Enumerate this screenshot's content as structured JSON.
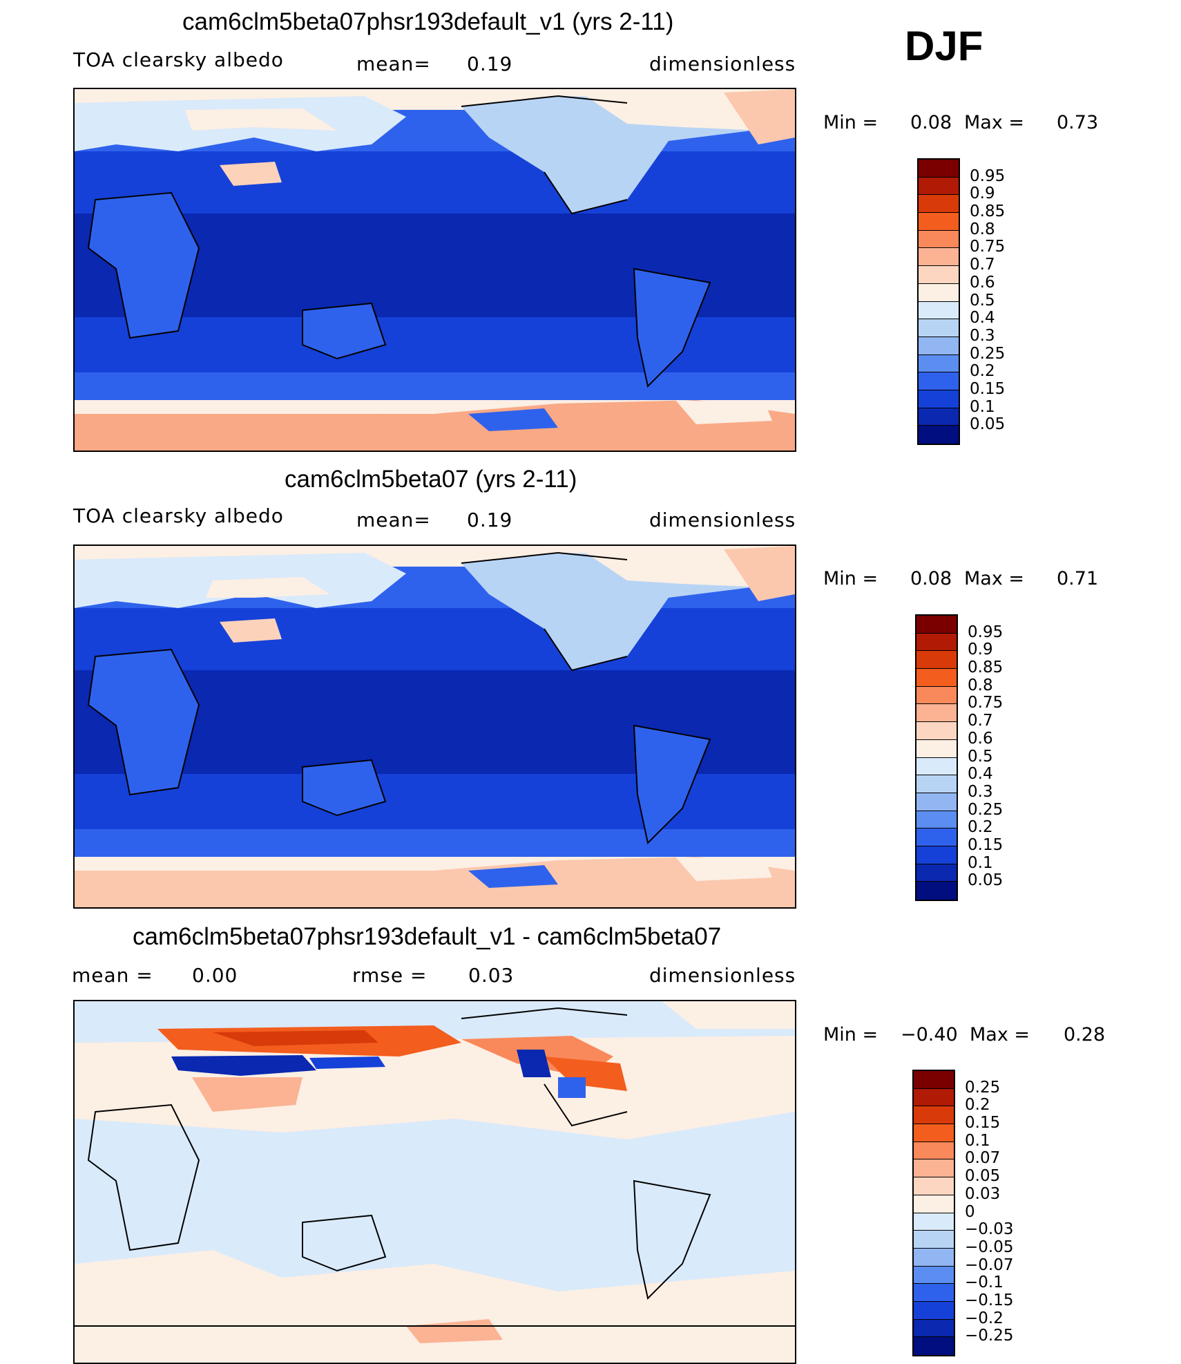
{
  "season": "DJF",
  "panels": [
    {
      "title": "cam6clm5beta07phsr193default_v1 (yrs 2-11)",
      "variable": "TOA clearsky albedo",
      "mean_label": "mean=",
      "mean_value": "0.19",
      "units": "dimensionless",
      "min_label": "Min =",
      "min_value": "0.08",
      "max_label": "Max =",
      "max_value": "0.73",
      "colorbar": {
        "colors": [
          "#7a0000",
          "#b11a05",
          "#d93a0a",
          "#f35d1e",
          "#f9895a",
          "#fbb393",
          "#fdd6c2",
          "#fcefe4",
          "#d9eafa",
          "#b8d4f5",
          "#92b6f2",
          "#5b8ef0",
          "#2f62ec",
          "#1541d8",
          "#0a28b0",
          "#000e80"
        ],
        "labels": [
          "0.95",
          "0.9",
          "0.85",
          "0.8",
          "0.75",
          "0.7",
          "0.6",
          "0.5",
          "0.4",
          "0.3",
          "0.25",
          "0.2",
          "0.15",
          "0.1",
          "0.05"
        ]
      }
    },
    {
      "title": "cam6clm5beta07 (yrs 2-11)",
      "variable": "TOA clearsky albedo",
      "mean_label": "mean=",
      "mean_value": "0.19",
      "units": "dimensionless",
      "min_label": "Min =",
      "min_value": "0.08",
      "max_label": "Max =",
      "max_value": "0.71",
      "colorbar": {
        "colors": [
          "#7a0000",
          "#b11a05",
          "#d93a0a",
          "#f35d1e",
          "#f9895a",
          "#fbb393",
          "#fdd6c2",
          "#fcefe4",
          "#d9eafa",
          "#b8d4f5",
          "#92b6f2",
          "#5b8ef0",
          "#2f62ec",
          "#1541d8",
          "#0a28b0",
          "#000e80"
        ],
        "labels": [
          "0.95",
          "0.9",
          "0.85",
          "0.8",
          "0.75",
          "0.7",
          "0.6",
          "0.5",
          "0.4",
          "0.3",
          "0.25",
          "0.2",
          "0.15",
          "0.1",
          "0.05"
        ]
      }
    },
    {
      "title": "cam6clm5beta07phsr193default_v1 - cam6clm5beta07",
      "mean_label": "mean =",
      "mean_value": "0.00",
      "rmse_label": "rmse =",
      "rmse_value": "0.03",
      "units": "dimensionless",
      "min_label": "Min =",
      "min_value": "−0.40",
      "max_label": "Max =",
      "max_value": "0.28",
      "colorbar": {
        "colors": [
          "#7a0000",
          "#b11a05",
          "#d93a0a",
          "#f35d1e",
          "#f9895a",
          "#fbb393",
          "#fdd6c2",
          "#fcefe4",
          "#d9eafa",
          "#b8d4f5",
          "#92b6f2",
          "#5b8ef0",
          "#2f62ec",
          "#1541d8",
          "#0a28b0",
          "#000e80"
        ],
        "labels": [
          "0.25",
          "0.2",
          "0.15",
          "0.1",
          "0.07",
          "0.05",
          "0.03",
          "0",
          "−0.03",
          "−0.05",
          "−0.07",
          "−0.1",
          "−0.15",
          "−0.2",
          "−0.25"
        ]
      }
    }
  ]
}
